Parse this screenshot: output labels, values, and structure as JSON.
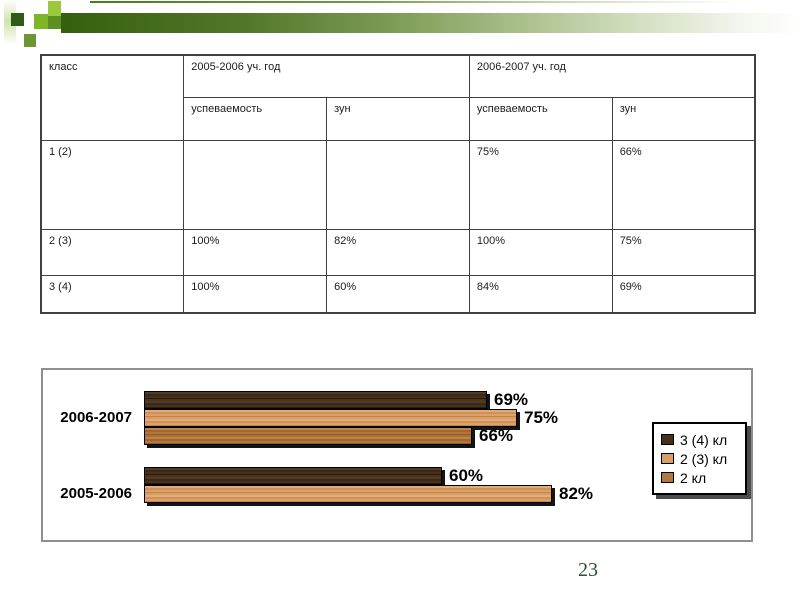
{
  "slide": {
    "page_number": "23"
  },
  "table": {
    "corner_header": "класс",
    "col_groups": [
      "2005-2006 уч. год",
      "2006-2007 уч. год"
    ],
    "sub_headers": [
      "успеваемость",
      "зун",
      "успеваемость",
      "зун"
    ],
    "rows": [
      [
        "1 (2)",
        "",
        "",
        "75%",
        "66%"
      ],
      [
        "2 (3)",
        "100%",
        "82%",
        "100%",
        "75%"
      ],
      [
        "3 (4)",
        "100%",
        "60%",
        "84%",
        "69%"
      ]
    ]
  },
  "chart_data": {
    "type": "bar",
    "orientation": "horizontal",
    "title": "",
    "categories": [
      "2006-2007",
      "2005-2006"
    ],
    "series": [
      {
        "name": "3 (4) кл",
        "color": "#452f1d",
        "values": [
          69,
          60
        ]
      },
      {
        "name": "2 (3) кл",
        "color": "#d79e69",
        "values": [
          75,
          82
        ]
      },
      {
        "name": "2 кл",
        "color": "#b1793e",
        "values": [
          66,
          null
        ]
      }
    ],
    "value_suffix": "%",
    "data_labels": true,
    "xlim": [
      0,
      100
    ],
    "grid": false,
    "legend_position": "right"
  },
  "theme": {
    "header_green_dark": "#35600d",
    "accent_square_bright": "#9aca3c",
    "accent_square_dark": "#2d5c17",
    "accent_square_olive": "#6d9733",
    "page_number_color": "#2c5136",
    "table_border": "#404040",
    "chart_frame": "#8f8f8f"
  }
}
